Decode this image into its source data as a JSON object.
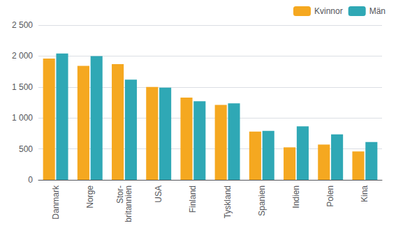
{
  "chart_data": {
    "type": "bar",
    "categories": [
      "Danmark",
      "Norge",
      "Stor-\nbritannien",
      "USA",
      "Finland",
      "Tyskland",
      "Spanien",
      "Indien",
      "Polen",
      "Kina"
    ],
    "series": [
      {
        "name": "Kvinnor",
        "color": "#F5A820",
        "values": [
          1960,
          1840,
          1870,
          1500,
          1330,
          1210,
          780,
          525,
          570,
          460
        ]
      },
      {
        "name": "Män",
        "color": "#2FA8B5",
        "values": [
          2040,
          2000,
          1620,
          1490,
          1270,
          1235,
          790,
          865,
          735,
          610
        ]
      }
    ],
    "ylim": [
      0,
      2500
    ],
    "yticks": [
      0,
      500,
      {
        "value": 1000,
        "label": "1 000"
      },
      {
        "value": 1500,
        "label": "1 500"
      },
      {
        "value": 2000,
        "label": "2 000"
      },
      {
        "value": 2500,
        "label": "2 500"
      }
    ],
    "grid": true,
    "legend": "upper right"
  }
}
